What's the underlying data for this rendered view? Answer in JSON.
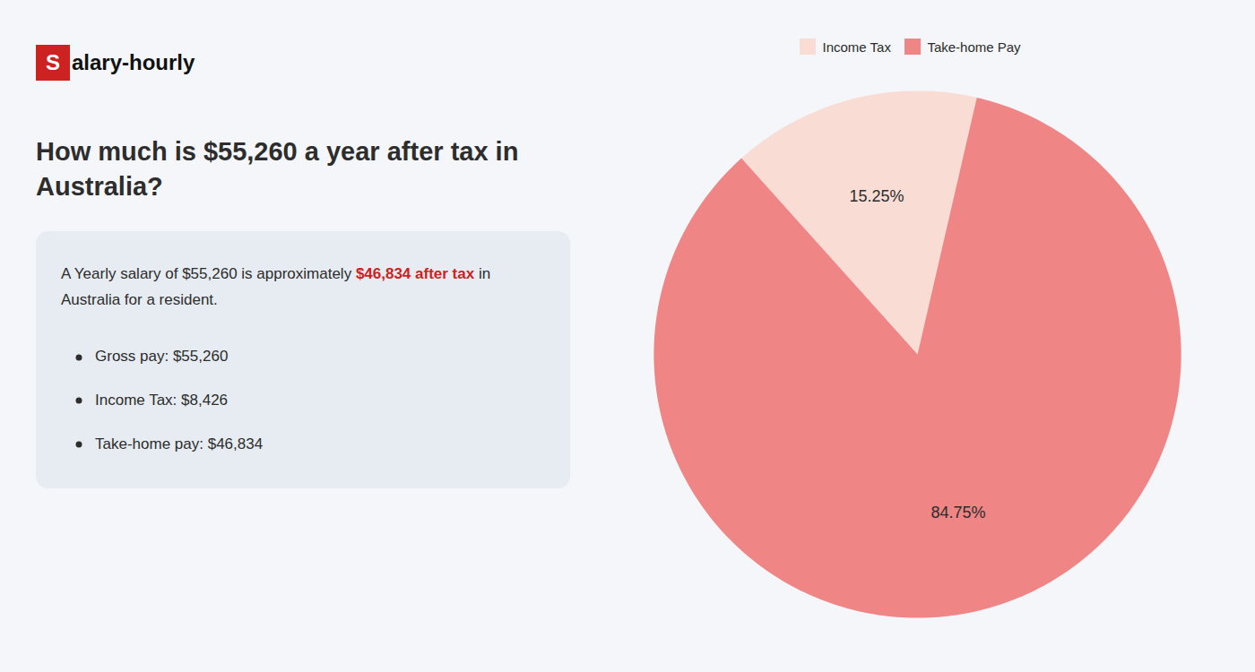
{
  "chart_data": {
    "type": "pie",
    "title": "How much is $55,260 a year after tax in Australia?",
    "categories": [
      "Income Tax",
      "Take-home Pay"
    ],
    "values": [
      15.25,
      84.75
    ],
    "value_labels": [
      "15.25%",
      "84.75%"
    ],
    "colors": [
      "#f9ddd5",
      "#f08585"
    ],
    "data_labels": true,
    "legend": "top",
    "annotations": [
      [
        {
          "text": "S",
          "color": "#cc2222"
        },
        {
          "text": "alary-hourly"
        }
      ],
      [
        {
          "text": "A Yearly salary of $55,260 is approximately "
        },
        {
          "text": "$46,834 after tax",
          "color": "#cc2222"
        },
        {
          "text": " in"
        }
      ],
      [
        {
          "text": "Australia for a resident."
        }
      ],
      [
        {
          "text": "Gross pay: $55,260"
        }
      ],
      [
        {
          "text": "Income Tax: $8,426"
        }
      ],
      [
        {
          "text": "Take-home pay: $46,834"
        }
      ]
    ]
  }
}
